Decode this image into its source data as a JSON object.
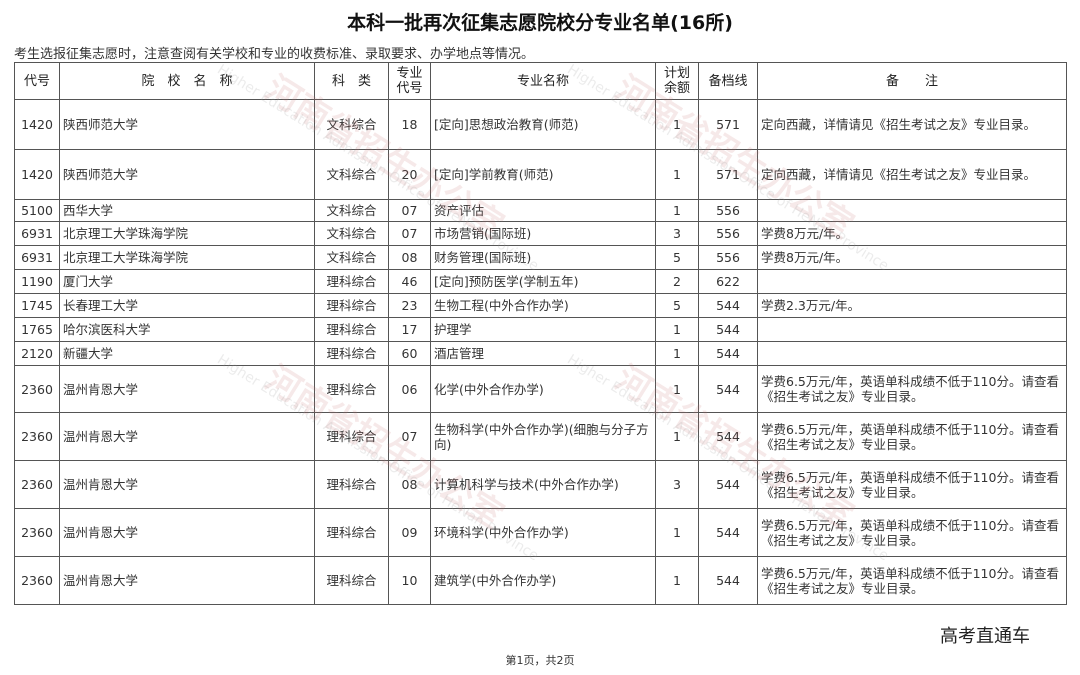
{
  "title": "本科一批再次征集志愿院校分专业名单(16所)",
  "note": "考生选报征集志愿时，注意查阅有关学校和专业的收费标准、录取要求、办学地点等情况。",
  "table": {
    "headers": [
      "代号",
      "院　校　名　称",
      "科　类",
      "专业代号",
      "专业名称",
      "计划余额",
      "备档线",
      "备　　注"
    ],
    "rows": [
      {
        "code": "1420",
        "school": "陕西师范大学",
        "category": "文科综合",
        "major_code": "18",
        "major": "[定向]思想政治教育(师范)",
        "remaining": "1",
        "cutoff": "571",
        "remark": "定向西藏，详情请见《招生考试之友》专业目录。"
      },
      {
        "code": "1420",
        "school": "陕西师范大学",
        "category": "文科综合",
        "major_code": "20",
        "major": "[定向]学前教育(师范)",
        "remaining": "1",
        "cutoff": "571",
        "remark": "定向西藏，详情请见《招生考试之友》专业目录。"
      },
      {
        "code": "5100",
        "school": "西华大学",
        "category": "文科综合",
        "major_code": "07",
        "major": "资产评估",
        "remaining": "1",
        "cutoff": "556",
        "remark": ""
      },
      {
        "code": "6931",
        "school": "北京理工大学珠海学院",
        "category": "文科综合",
        "major_code": "07",
        "major": "市场营销(国际班)",
        "remaining": "3",
        "cutoff": "556",
        "remark": "学费8万元/年。"
      },
      {
        "code": "6931",
        "school": "北京理工大学珠海学院",
        "category": "文科综合",
        "major_code": "08",
        "major": "财务管理(国际班)",
        "remaining": "5",
        "cutoff": "556",
        "remark": "学费8万元/年。"
      },
      {
        "code": "1190",
        "school": "厦门大学",
        "category": "理科综合",
        "major_code": "46",
        "major": "[定向]预防医学(学制五年)",
        "remaining": "2",
        "cutoff": "622",
        "remark": ""
      },
      {
        "code": "1745",
        "school": "长春理工大学",
        "category": "理科综合",
        "major_code": "23",
        "major": "生物工程(中外合作办学)",
        "remaining": "5",
        "cutoff": "544",
        "remark": "学费2.3万元/年。"
      },
      {
        "code": "1765",
        "school": "哈尔滨医科大学",
        "category": "理科综合",
        "major_code": "17",
        "major": "护理学",
        "remaining": "1",
        "cutoff": "544",
        "remark": ""
      },
      {
        "code": "2120",
        "school": "新疆大学",
        "category": "理科综合",
        "major_code": "60",
        "major": "酒店管理",
        "remaining": "1",
        "cutoff": "544",
        "remark": ""
      },
      {
        "code": "2360",
        "school": "温州肯恩大学",
        "category": "理科综合",
        "major_code": "06",
        "major": "化学(中外合作办学)",
        "remaining": "1",
        "cutoff": "544",
        "remark": "学费6.5万元/年，英语单科成绩不低于110分。请查看《招生考试之友》专业目录。"
      },
      {
        "code": "2360",
        "school": "温州肯恩大学",
        "category": "理科综合",
        "major_code": "07",
        "major": "生物科学(中外合作办学)(细胞与分子方向)",
        "remaining": "1",
        "cutoff": "544",
        "remark": "学费6.5万元/年，英语单科成绩不低于110分。请查看《招生考试之友》专业目录。"
      },
      {
        "code": "2360",
        "school": "温州肯恩大学",
        "category": "理科综合",
        "major_code": "08",
        "major": "计算机科学与技术(中外合作办学)",
        "remaining": "3",
        "cutoff": "544",
        "remark": "学费6.5万元/年，英语单科成绩不低于110分。请查看《招生考试之友》专业目录。"
      },
      {
        "code": "2360",
        "school": "温州肯恩大学",
        "category": "理科综合",
        "major_code": "09",
        "major": "环境科学(中外合作办学)",
        "remaining": "1",
        "cutoff": "544",
        "remark": "学费6.5万元/年，英语单科成绩不低于110分。请查看《招生考试之友》专业目录。"
      },
      {
        "code": "2360",
        "school": "温州肯恩大学",
        "category": "理科综合",
        "major_code": "10",
        "major": "建筑学(中外合作办学)",
        "remaining": "1",
        "cutoff": "544",
        "remark": "学费6.5万元/年，英语单科成绩不低于110分。请查看《招生考试之友》专业目录。"
      }
    ]
  },
  "watermark": {
    "cn": "河南省招生办公室",
    "en": "Higher Education Admission Office of HeNan Province"
  },
  "footer": "第1页，共2页",
  "brand": "高考直通车"
}
